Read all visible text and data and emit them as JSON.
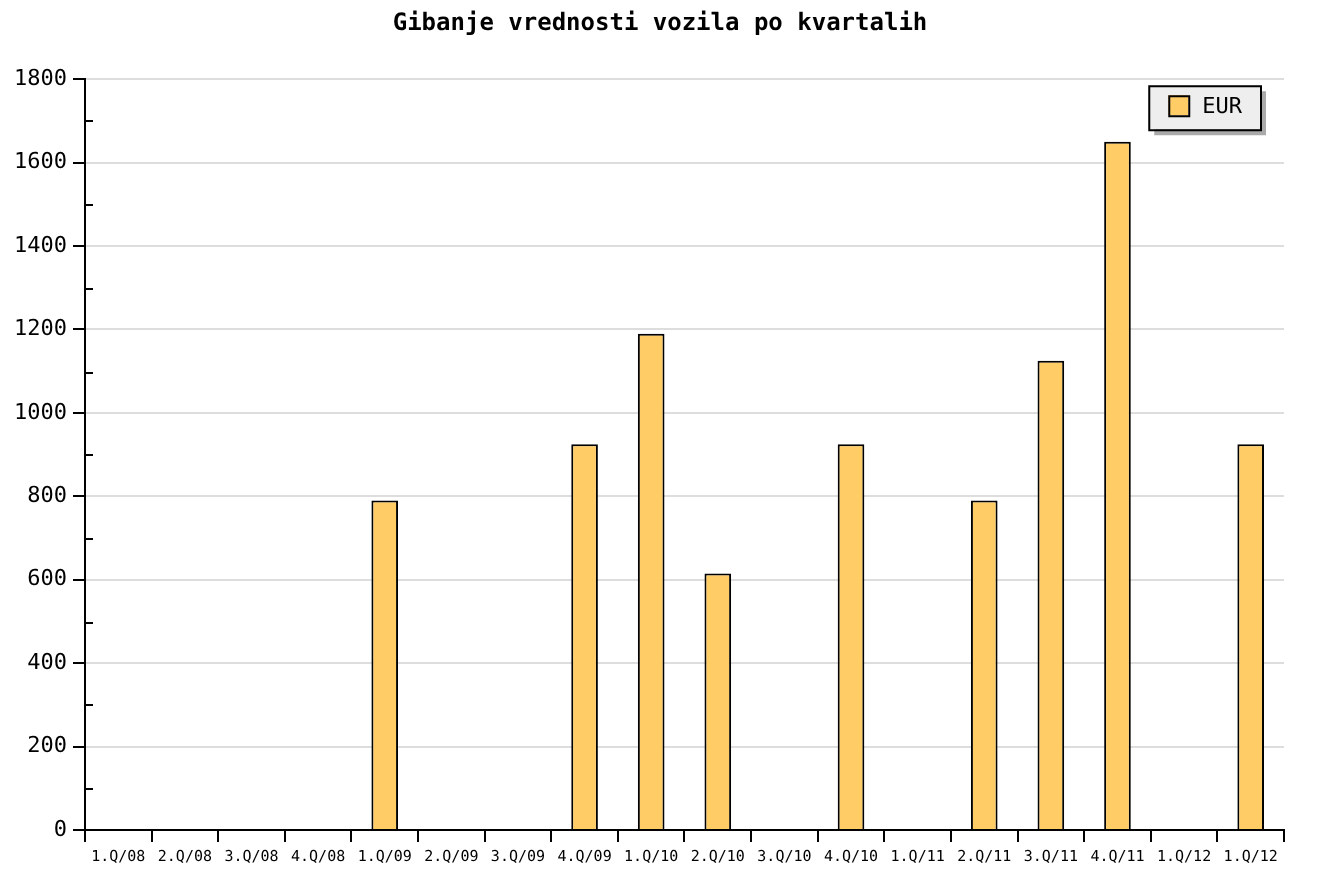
{
  "chart_data": {
    "type": "bar",
    "title": "Gibanje vrednosti vozila po kvartalih",
    "categories": [
      "1.Q/08",
      "2.Q/08",
      "3.Q/08",
      "4.Q/08",
      "1.Q/09",
      "2.Q/09",
      "3.Q/09",
      "4.Q/09",
      "1.Q/10",
      "2.Q/10",
      "3.Q/10",
      "4.Q/10",
      "1.Q/11",
      "2.Q/11",
      "3.Q/11",
      "4.Q/11",
      "1.Q/12",
      "1.Q/12"
    ],
    "series": [
      {
        "name": "EUR",
        "color": "#ffcc66",
        "values": [
          null,
          null,
          null,
          null,
          790,
          null,
          null,
          925,
          1190,
          615,
          null,
          925,
          null,
          790,
          1125,
          1650,
          null,
          925
        ]
      }
    ],
    "ylim": [
      0,
      1800
    ],
    "yticks": [
      0,
      200,
      400,
      600,
      800,
      1000,
      1200,
      1400,
      1600,
      1800
    ],
    "grid": "y",
    "legend": "top right"
  }
}
